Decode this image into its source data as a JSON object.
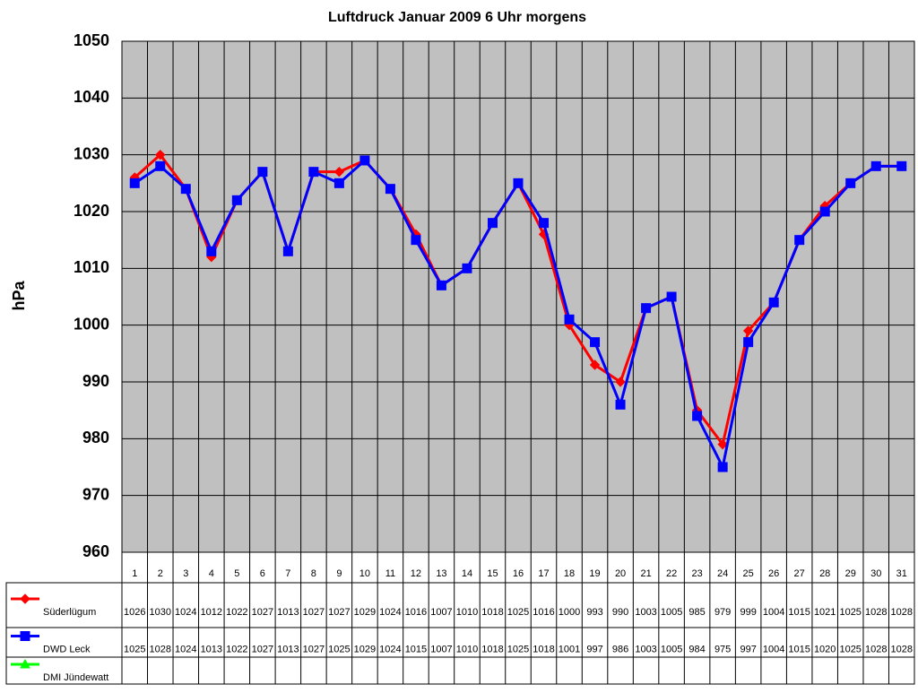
{
  "chart_data": {
    "type": "line",
    "title": "Luftdruck Januar 2009 6 Uhr morgens",
    "y_label": "hPa",
    "categories": [
      "1",
      "2",
      "3",
      "4",
      "5",
      "6",
      "7",
      "8",
      "9",
      "10",
      "11",
      "12",
      "13",
      "14",
      "15",
      "16",
      "17",
      "18",
      "19",
      "20",
      "21",
      "22",
      "23",
      "24",
      "25",
      "26",
      "27",
      "28",
      "29",
      "30",
      "31"
    ],
    "series": [
      {
        "name": "Süderlügum",
        "color": "#ff0000",
        "marker": "diamond",
        "values": [
          1026,
          1030,
          1024,
          1012,
          1022,
          1027,
          1013,
          1027,
          1027,
          1029,
          1024,
          1016,
          1007,
          1010,
          1018,
          1025,
          1016,
          1000,
          993,
          990,
          1003,
          1005,
          985,
          979,
          999,
          1004,
          1015,
          1021,
          1025,
          1028,
          1028
        ]
      },
      {
        "name": "DWD Leck",
        "color": "#0000ff",
        "marker": "square",
        "values": [
          1025,
          1028,
          1024,
          1013,
          1022,
          1027,
          1013,
          1027,
          1025,
          1029,
          1024,
          1015,
          1007,
          1010,
          1018,
          1025,
          1018,
          1001,
          997,
          986,
          1003,
          1005,
          984,
          975,
          997,
          1004,
          1015,
          1020,
          1025,
          1028,
          1028
        ]
      },
      {
        "name": "DMI Jündewatt",
        "color": "#00ff00",
        "marker": "triangle",
        "values": [
          null,
          null,
          null,
          null,
          null,
          null,
          null,
          null,
          null,
          null,
          null,
          null,
          null,
          null,
          null,
          null,
          null,
          null,
          null,
          null,
          null,
          null,
          null,
          null,
          null,
          null,
          null,
          null,
          null,
          null,
          null
        ]
      }
    ],
    "ylim": [
      960,
      1050
    ],
    "yticks": [
      960,
      970,
      980,
      990,
      1000,
      1010,
      1020,
      1030,
      1040,
      1050
    ],
    "grid": true
  }
}
